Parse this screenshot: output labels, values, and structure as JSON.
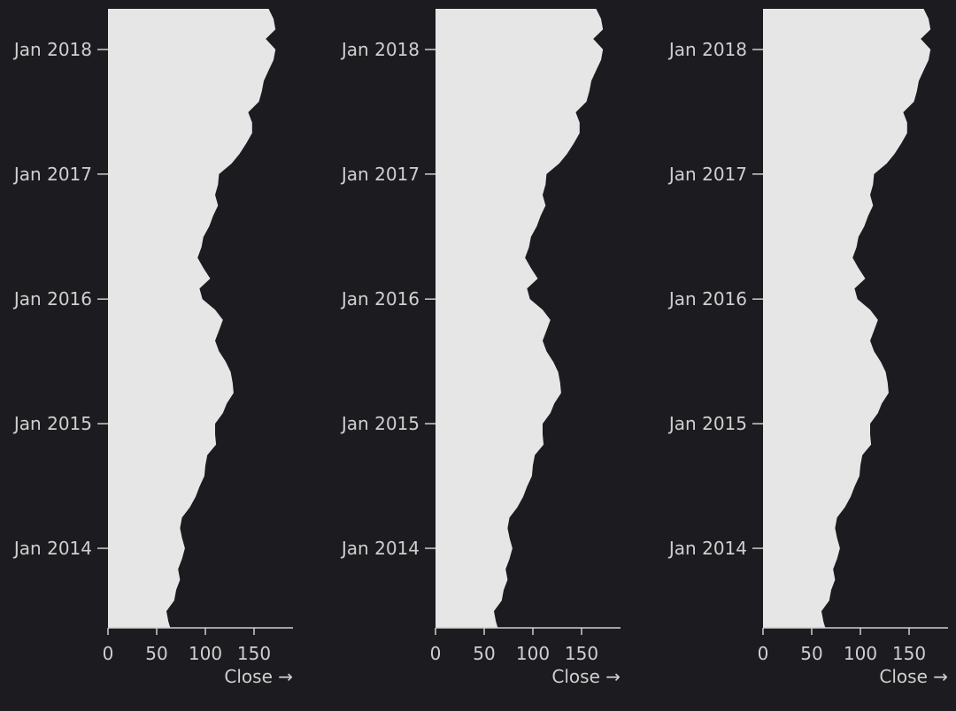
{
  "chart_data": {
    "type": "area",
    "orientation": "vertical",
    "panel_count": 3,
    "x_label": "Close →",
    "x_ticks": [
      0,
      50,
      100,
      150
    ],
    "xlim": [
      0,
      190
    ],
    "y_ticks": [
      "Jan 2014",
      "Jan 2015",
      "Jan 2016",
      "Jan 2017",
      "Jan 2018"
    ],
    "ylim": [
      "2013-05-13",
      "2018-04-30"
    ],
    "colors": {
      "background": "#1c1c20",
      "area": "#e6e6e6",
      "text": "#cfcfcf"
    },
    "series": [
      {
        "x": [
          "2013-05-13",
          "2013-06-01",
          "2013-07-01",
          "2013-08-01",
          "2013-09-01",
          "2013-10-01",
          "2013-11-01",
          "2013-12-01",
          "2014-01-01",
          "2014-02-01",
          "2014-03-01",
          "2014-04-01",
          "2014-05-01",
          "2014-06-01",
          "2014-07-01",
          "2014-08-01",
          "2014-09-01",
          "2014-10-01",
          "2014-11-01",
          "2014-12-01",
          "2015-01-01",
          "2015-02-01",
          "2015-03-01",
          "2015-04-01",
          "2015-05-01",
          "2015-06-01",
          "2015-07-01",
          "2015-08-01",
          "2015-09-01",
          "2015-10-01",
          "2015-11-01",
          "2015-12-01",
          "2016-01-01",
          "2016-02-01",
          "2016-03-01",
          "2016-04-01",
          "2016-05-01",
          "2016-06-01",
          "2016-07-01",
          "2016-08-01",
          "2016-09-01",
          "2016-10-01",
          "2016-11-01",
          "2016-12-01",
          "2017-01-01",
          "2017-02-01",
          "2017-03-01",
          "2017-04-01",
          "2017-05-01",
          "2017-06-01",
          "2017-07-01",
          "2017-08-01",
          "2017-09-01",
          "2017-10-01",
          "2017-11-01",
          "2017-12-01",
          "2018-01-01",
          "2018-02-01",
          "2018-03-01",
          "2018-04-01",
          "2018-04-30"
        ],
        "values": [
          64,
          62,
          60,
          68,
          70,
          74,
          72,
          76,
          79,
          76,
          74,
          76,
          84,
          90,
          94,
          99,
          100,
          102,
          111,
          110,
          110,
          118,
          122,
          129,
          128,
          126,
          121,
          114,
          110,
          114,
          118,
          110,
          97,
          94,
          105,
          98,
          92,
          96,
          98,
          104,
          108,
          113,
          110,
          113,
          114,
          127,
          135,
          142,
          148,
          148,
          144,
          155,
          158,
          160,
          165,
          170,
          172,
          162,
          172,
          170,
          165
        ]
      },
      {
        "x": [
          "2013-05-13",
          "2013-06-01",
          "2013-07-01",
          "2013-08-01",
          "2013-09-01",
          "2013-10-01",
          "2013-11-01",
          "2013-12-01",
          "2014-01-01",
          "2014-02-01",
          "2014-03-01",
          "2014-04-01",
          "2014-05-01",
          "2014-06-01",
          "2014-07-01",
          "2014-08-01",
          "2014-09-01",
          "2014-10-01",
          "2014-11-01",
          "2014-12-01",
          "2015-01-01",
          "2015-02-01",
          "2015-03-01",
          "2015-04-01",
          "2015-05-01",
          "2015-06-01",
          "2015-07-01",
          "2015-08-01",
          "2015-09-01",
          "2015-10-01",
          "2015-11-01",
          "2015-12-01",
          "2016-01-01",
          "2016-02-01",
          "2016-03-01",
          "2016-04-01",
          "2016-05-01",
          "2016-06-01",
          "2016-07-01",
          "2016-08-01",
          "2016-09-01",
          "2016-10-01",
          "2016-11-01",
          "2016-12-01",
          "2017-01-01",
          "2017-02-01",
          "2017-03-01",
          "2017-04-01",
          "2017-05-01",
          "2017-06-01",
          "2017-07-01",
          "2017-08-01",
          "2017-09-01",
          "2017-10-01",
          "2017-11-01",
          "2017-12-01",
          "2018-01-01",
          "2018-02-01",
          "2018-03-01",
          "2018-04-01",
          "2018-04-30"
        ],
        "values": [
          64,
          62,
          60,
          68,
          70,
          74,
          72,
          76,
          79,
          76,
          74,
          76,
          84,
          90,
          94,
          99,
          100,
          102,
          111,
          110,
          110,
          118,
          122,
          129,
          128,
          126,
          121,
          114,
          110,
          114,
          118,
          110,
          97,
          94,
          105,
          98,
          92,
          96,
          98,
          104,
          108,
          113,
          110,
          113,
          114,
          127,
          135,
          142,
          148,
          148,
          144,
          155,
          158,
          160,
          165,
          170,
          172,
          162,
          172,
          170,
          165
        ]
      },
      {
        "x": [
          "2013-05-13",
          "2013-06-01",
          "2013-07-01",
          "2013-08-01",
          "2013-09-01",
          "2013-10-01",
          "2013-11-01",
          "2013-12-01",
          "2014-01-01",
          "2014-02-01",
          "2014-03-01",
          "2014-04-01",
          "2014-05-01",
          "2014-06-01",
          "2014-07-01",
          "2014-08-01",
          "2014-09-01",
          "2014-10-01",
          "2014-11-01",
          "2014-12-01",
          "2015-01-01",
          "2015-02-01",
          "2015-03-01",
          "2015-04-01",
          "2015-05-01",
          "2015-06-01",
          "2015-07-01",
          "2015-08-01",
          "2015-09-01",
          "2015-10-01",
          "2015-11-01",
          "2015-12-01",
          "2016-01-01",
          "2016-02-01",
          "2016-03-01",
          "2016-04-01",
          "2016-05-01",
          "2016-06-01",
          "2016-07-01",
          "2016-08-01",
          "2016-09-01",
          "2016-10-01",
          "2016-11-01",
          "2016-12-01",
          "2017-01-01",
          "2017-02-01",
          "2017-03-01",
          "2017-04-01",
          "2017-05-01",
          "2017-06-01",
          "2017-07-01",
          "2017-08-01",
          "2017-09-01",
          "2017-10-01",
          "2017-11-01",
          "2017-12-01",
          "2018-01-01",
          "2018-02-01",
          "2018-03-01",
          "2018-04-01",
          "2018-04-30"
        ],
        "values": [
          64,
          62,
          60,
          68,
          70,
          74,
          72,
          76,
          79,
          76,
          74,
          76,
          84,
          90,
          94,
          99,
          100,
          102,
          111,
          110,
          110,
          118,
          122,
          129,
          128,
          126,
          121,
          114,
          110,
          114,
          118,
          110,
          97,
          94,
          105,
          98,
          92,
          96,
          98,
          104,
          108,
          113,
          110,
          113,
          114,
          127,
          135,
          142,
          148,
          148,
          144,
          155,
          158,
          160,
          165,
          170,
          172,
          162,
          172,
          170,
          165
        ]
      }
    ]
  }
}
